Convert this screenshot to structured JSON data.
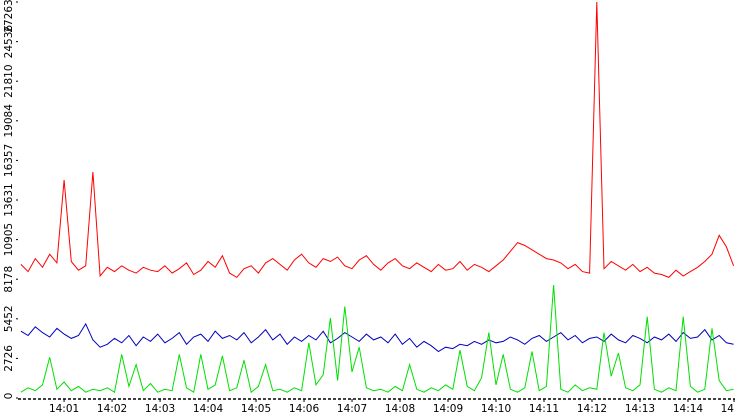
{
  "chart_data": {
    "type": "line",
    "x": [
      840.1,
      840.25,
      840.4,
      840.55,
      840.7,
      840.85,
      841,
      841.15,
      841.3,
      841.45,
      841.6,
      841.75,
      841.9,
      842.05,
      842.2,
      842.35,
      842.5,
      842.65,
      842.8,
      842.95,
      843.1,
      843.25,
      843.4,
      843.55,
      843.7,
      843.85,
      844,
      844.15,
      844.3,
      844.45,
      844.6,
      844.75,
      844.9,
      845.05,
      845.2,
      845.35,
      845.5,
      845.65,
      845.8,
      845.95,
      846.1,
      846.25,
      846.4,
      846.55,
      846.7,
      846.85,
      847,
      847.15,
      847.3,
      847.45,
      847.6,
      847.75,
      847.9,
      848.05,
      848.2,
      848.35,
      848.5,
      848.65,
      848.8,
      848.95,
      849.1,
      849.25,
      849.4,
      849.55,
      849.7,
      849.85,
      850,
      850.15,
      850.3,
      850.45,
      850.6,
      850.75,
      850.9,
      851.05,
      851.2,
      851.35,
      851.5,
      851.65,
      851.8,
      851.95,
      852.1,
      852.25,
      852.4,
      852.55,
      852.7,
      852.85,
      853,
      853.15,
      853.3,
      853.45,
      853.6,
      853.75,
      853.9,
      854.05,
      854.2,
      854.35,
      854.5,
      854.65,
      854.8,
      854.95
    ],
    "series": [
      {
        "color": "#ff0000",
        "values": [
          9200,
          8700,
          9600,
          9000,
          9900,
          9300,
          15000,
          9400,
          8800,
          9100,
          15560,
          8400,
          9000,
          8700,
          9100,
          8800,
          8600,
          9000,
          8800,
          8700,
          9100,
          8600,
          8900,
          9300,
          8500,
          8800,
          9400,
          9000,
          9800,
          8600,
          8300,
          8900,
          9100,
          8600,
          9300,
          9600,
          9200,
          8800,
          9500,
          9900,
          9300,
          9000,
          9600,
          9400,
          9700,
          9100,
          8900,
          9500,
          9800,
          9200,
          8800,
          9300,
          9600,
          9100,
          8900,
          9300,
          9000,
          8700,
          9200,
          8800,
          8900,
          9400,
          8800,
          9200,
          9000,
          8700,
          9100,
          9500,
          10100,
          10700,
          10500,
          10200,
          9900,
          9600,
          9500,
          9300,
          8900,
          9200,
          8700,
          8600,
          27263,
          8900,
          9400,
          9100,
          8800,
          9200,
          8700,
          9000,
          8600,
          8500,
          8300,
          8800,
          8400,
          8700,
          9000,
          9400,
          9900,
          11200,
          10400,
          9100
        ]
      },
      {
        "color": "#0000c0",
        "values": [
          4600,
          4300,
          4900,
          4500,
          4200,
          4800,
          4400,
          4100,
          4300,
          5100,
          4000,
          3500,
          3700,
          4100,
          3800,
          4300,
          3600,
          4200,
          3900,
          4400,
          3800,
          4100,
          4500,
          3700,
          4200,
          4400,
          3900,
          4600,
          4100,
          4300,
          4000,
          4500,
          3800,
          4200,
          4700,
          4000,
          4400,
          3700,
          4200,
          3900,
          4300,
          4000,
          4600,
          3800,
          4100,
          4500,
          4200,
          3900,
          4400,
          4000,
          4200,
          3800,
          4400,
          3700,
          4100,
          3500,
          3900,
          3600,
          3200,
          3500,
          3400,
          3700,
          3600,
          3900,
          3700,
          4000,
          3800,
          3900,
          4200,
          4000,
          3700,
          4100,
          4300,
          3900,
          4200,
          4500,
          4000,
          4300,
          3800,
          4100,
          4200,
          3900,
          4400,
          4000,
          3800,
          4300,
          4100,
          3800,
          4200,
          4000,
          4400,
          3900,
          4500,
          4100,
          4200,
          4700,
          4000,
          4300,
          3800,
          3700
        ]
      },
      {
        "color": "#00e000",
        "values": [
          400,
          700,
          500,
          900,
          2800,
          600,
          1100,
          500,
          800,
          400,
          600,
          500,
          700,
          400,
          3000,
          800,
          2300,
          500,
          1000,
          400,
          600,
          500,
          3000,
          700,
          400,
          3000,
          600,
          900,
          2900,
          500,
          700,
          2600,
          400,
          800,
          2300,
          500,
          600,
          400,
          700,
          500,
          3800,
          900,
          1600,
          5500,
          1200,
          6300,
          1800,
          3500,
          700,
          500,
          600,
          400,
          800,
          500,
          2300,
          600,
          400,
          700,
          500,
          900,
          600,
          3300,
          800,
          500,
          1400,
          4500,
          900,
          3000,
          600,
          400,
          700,
          3200,
          500,
          800,
          7780,
          600,
          400,
          900,
          500,
          700,
          600,
          4500,
          1500,
          3100,
          700,
          500,
          900,
          5600,
          600,
          400,
          700,
          500,
          5600,
          800,
          400,
          600,
          4800,
          1200,
          500,
          600
        ]
      }
    ],
    "xlim": [
      840.04,
      854.98
    ],
    "xticks": [
      {
        "value": 841,
        "label": "14:01"
      },
      {
        "value": 842,
        "label": "14:02"
      },
      {
        "value": 843,
        "label": "14:03"
      },
      {
        "value": 844,
        "label": "14:04"
      },
      {
        "value": 845,
        "label": "14:05"
      },
      {
        "value": 846,
        "label": "14:06"
      },
      {
        "value": 847,
        "label": "14:07"
      },
      {
        "value": 848,
        "label": "14:08"
      },
      {
        "value": 849,
        "label": "14:09"
      },
      {
        "value": 850,
        "label": "14:10"
      },
      {
        "value": 851,
        "label": "14:11"
      },
      {
        "value": 852,
        "label": "14:12"
      },
      {
        "value": 853,
        "label": "14:13"
      },
      {
        "value": 854,
        "label": "14:14"
      },
      {
        "value": 855,
        "label": "14"
      }
    ],
    "ylim": [
      0,
      27263
    ],
    "yticks": [
      0,
      2726,
      5452,
      8178,
      10905,
      13631,
      16357,
      19084,
      21810,
      24536,
      27263
    ]
  }
}
